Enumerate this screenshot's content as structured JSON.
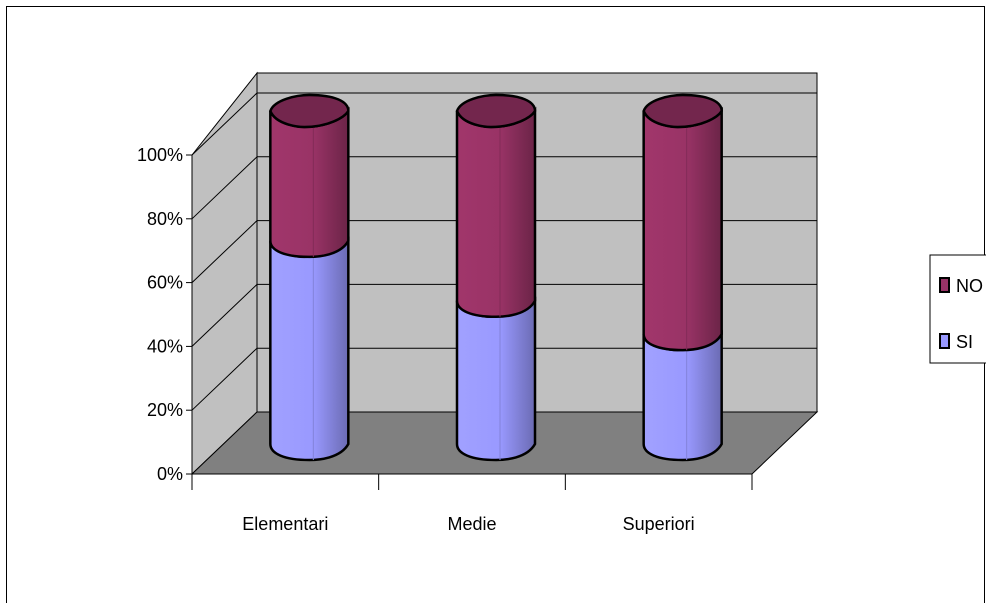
{
  "chart_data": {
    "type": "bar",
    "stacked": "percent",
    "three_d": true,
    "categories": [
      "Elementari",
      "Medie",
      "Superiori"
    ],
    "series": [
      {
        "name": "SI",
        "values": [
          61,
          43,
          33
        ],
        "color": "#9999FF"
      },
      {
        "name": "NO",
        "values": [
          39,
          57,
          67
        ],
        "color": "#993366"
      }
    ],
    "y_ticks": [
      "0%",
      "20%",
      "40%",
      "60%",
      "80%",
      "100%"
    ],
    "ylim": [
      0,
      100
    ],
    "grid": true,
    "legend": {
      "position": "right",
      "order": [
        "NO",
        "SI"
      ]
    },
    "colors": {
      "back_wall": "#C0C0C0",
      "floor": "#808080",
      "gridline": "#000000"
    }
  }
}
